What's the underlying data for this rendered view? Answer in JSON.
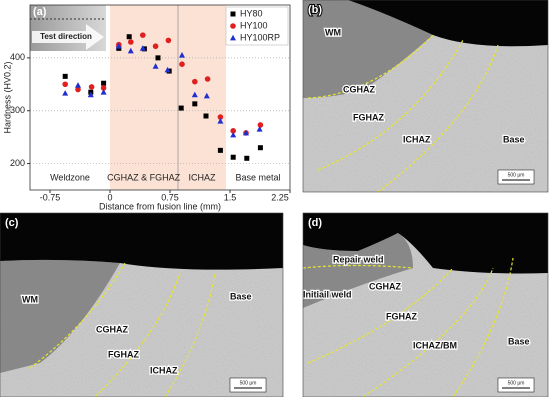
{
  "chart_data": {
    "type": "scatter",
    "panel_label": "(a)",
    "x_label": "Distance from fusion line (mm)",
    "y_label": "Hardness (HV0.2)",
    "xlim": [
      -1.0,
      2.25
    ],
    "xticks": [
      -0.75,
      0.0,
      0.75,
      1.5,
      2.25
    ],
    "ylim": [
      150,
      500
    ],
    "yticks": [
      200,
      300,
      400
    ],
    "grid": true,
    "legend": "upper right",
    "shaded_regions": [
      {
        "from": 0.0,
        "to": 1.45,
        "color": "#fbe2d5"
      }
    ],
    "divider": 0.85,
    "region_labels": [
      "Weldzone",
      "CGHAZ & FGHAZ",
      "ICHAZ",
      "Base metal"
    ],
    "arrow_label": "Test direction",
    "series": [
      {
        "name": "HY80",
        "color": "#000000",
        "marker": "square",
        "x": [
          -0.56,
          -0.24,
          -0.08,
          0.11,
          0.24,
          0.43,
          0.6,
          0.74,
          0.89,
          1.06,
          1.2,
          1.38,
          1.54,
          1.71,
          1.88
        ],
        "values": [
          365,
          335,
          352,
          418,
          440,
          417,
          400,
          375,
          305,
          313,
          290,
          225,
          212,
          210,
          230
        ]
      },
      {
        "name": "HY100",
        "color": "#e02020",
        "marker": "circle",
        "x": [
          -0.56,
          -0.4,
          -0.23,
          -0.08,
          0.11,
          0.26,
          0.41,
          0.57,
          0.73,
          0.9,
          1.06,
          1.22,
          1.38,
          1.54,
          1.7,
          1.88
        ],
        "values": [
          350,
          340,
          345,
          343,
          425,
          430,
          443,
          422,
          433,
          388,
          355,
          360,
          288,
          262,
          258,
          273
        ]
      },
      {
        "name": "HY100RP",
        "color": "#2030d0",
        "marker": "triangle",
        "x": [
          -0.56,
          -0.4,
          -0.24,
          -0.08,
          0.11,
          0.26,
          0.41,
          0.57,
          0.72,
          0.9,
          1.06,
          1.21,
          1.38,
          1.54,
          1.7,
          1.87
        ],
        "values": [
          333,
          348,
          330,
          335,
          422,
          413,
          418,
          384,
          377,
          405,
          330,
          328,
          280,
          254,
          258,
          265
        ]
      }
    ]
  },
  "micrographs": [
    {
      "label": "(b)",
      "zones": [
        "WM",
        "CGHAZ",
        "FGHAZ",
        "ICHAZ",
        "Base"
      ],
      "scale_bar": "500 μm"
    },
    {
      "label": "(c)",
      "zones": [
        "WM",
        "CGHAZ",
        "FGHAZ",
        "ICHAZ",
        "Base"
      ],
      "scale_bar": "500 μm"
    },
    {
      "label": "(d)",
      "zones": [
        "Repair weld",
        "Initiail weld",
        "CGHAZ",
        "FGHAZ",
        "ICHAZ/BM",
        "Base"
      ],
      "scale_bar": "500 μm"
    }
  ]
}
